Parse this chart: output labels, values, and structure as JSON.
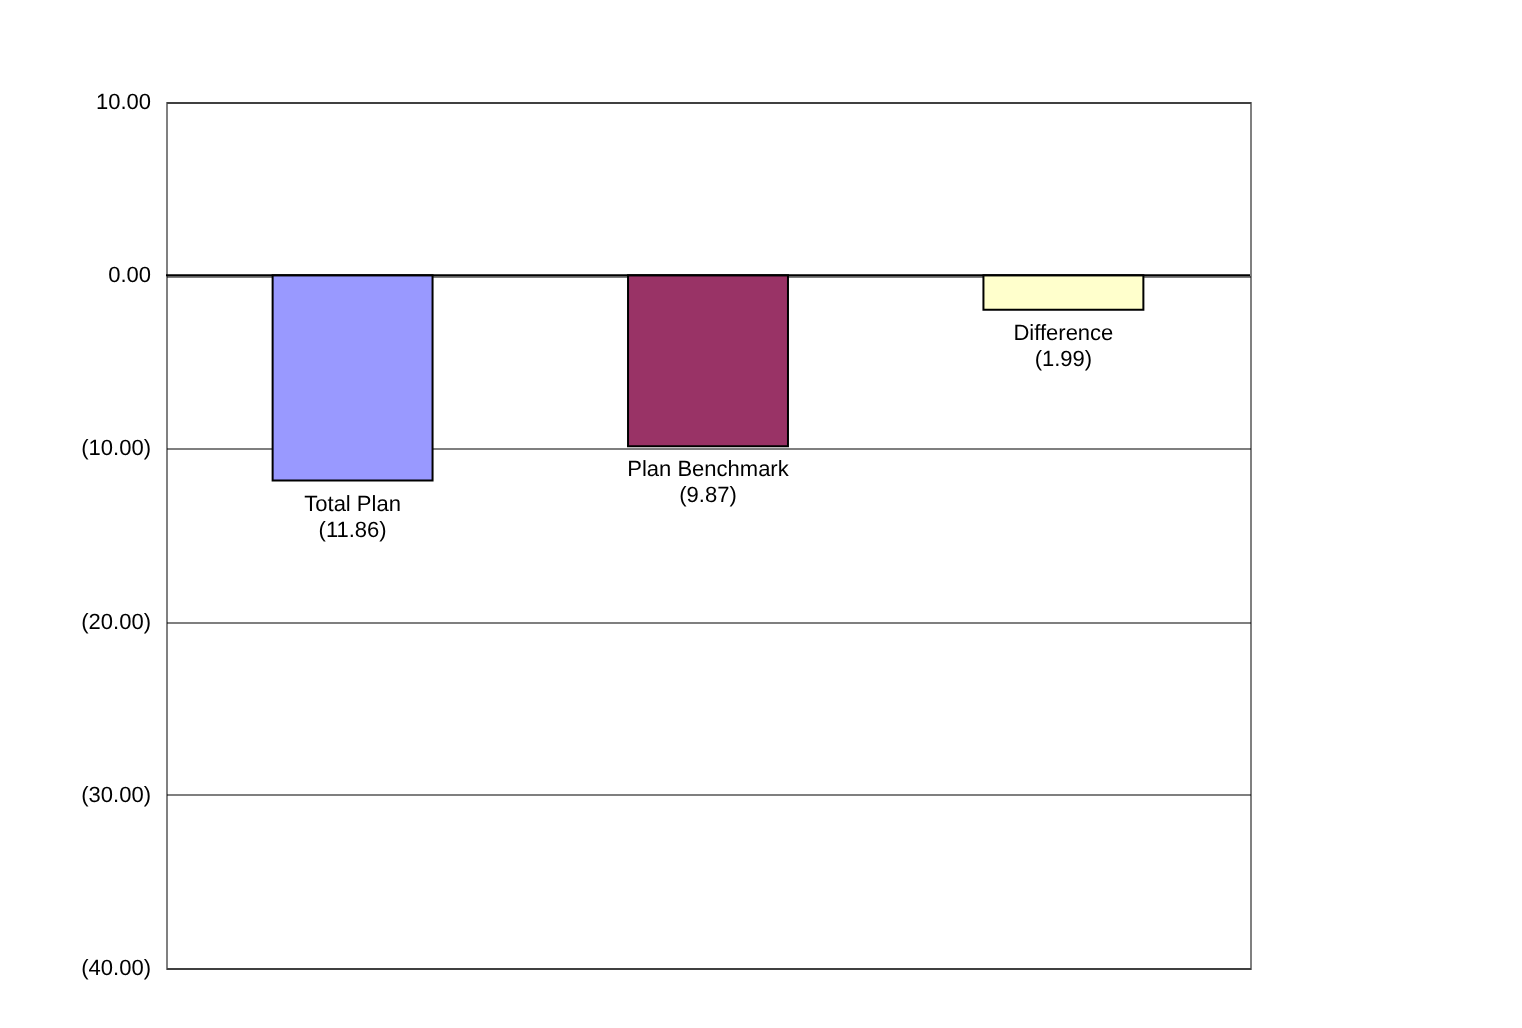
{
  "chart_data": {
    "type": "bar",
    "categories": [
      "Total Plan",
      "Plan Benchmark",
      "Difference"
    ],
    "values": [
      -11.86,
      -9.87,
      -1.99
    ],
    "colors": [
      "#9999ff",
      "#993366",
      "#ffffcc"
    ],
    "value_labels": [
      "(11.86)",
      "(9.87)",
      "(1.99)"
    ],
    "ylim": [
      -40,
      10
    ],
    "yticks": [
      {
        "value": 10,
        "label": "10.00"
      },
      {
        "value": 0,
        "label": "0.00"
      },
      {
        "value": -10,
        "label": "(10.00)"
      },
      {
        "value": -20,
        "label": "(20.00)"
      },
      {
        "value": -30,
        "label": "(30.00)"
      },
      {
        "value": -40,
        "label": "(40.00)"
      }
    ],
    "ref_lines": [
      {
        "axis": "y",
        "value": 0,
        "color": "#000000"
      }
    ],
    "grid": "y"
  }
}
